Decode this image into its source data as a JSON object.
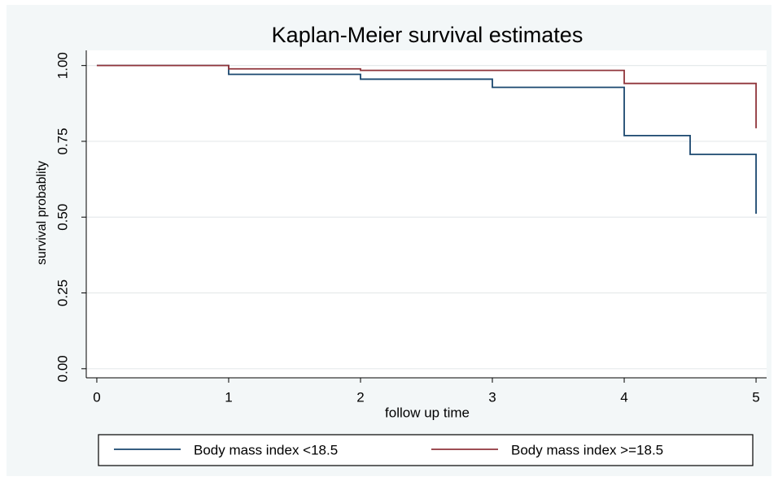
{
  "chart_data": {
    "type": "line",
    "step": "post",
    "title": "Kaplan-Meier survival estimates",
    "xlabel": "follow up time",
    "ylabel": "survival probablity",
    "x": [
      0,
      1,
      2,
      3,
      4,
      4.5,
      5
    ],
    "series": [
      {
        "name": "Body mass index <18.5",
        "color": "#1a476f",
        "values": [
          1,
          0.971,
          0.955,
          0.928,
          0.769,
          0.707,
          0.511
        ]
      },
      {
        "name": "Body mass index >=18.5",
        "color": "#90353b",
        "values": [
          1,
          0.989,
          0.984,
          0.984,
          0.941,
          0.941,
          0.793
        ]
      }
    ],
    "xlim": [
      -0.08,
      5.08
    ],
    "xticks": [
      0,
      1,
      2,
      3,
      4,
      5
    ],
    "ylim": [
      -0.03,
      1.05
    ],
    "yticks": [
      {
        "value": 0,
        "label": "0.00"
      },
      {
        "value": 0.25,
        "label": "0.25"
      },
      {
        "value": 0.5,
        "label": "0.50"
      },
      {
        "value": 0.75,
        "label": "0.75"
      },
      {
        "value": 1,
        "label": "1.00"
      }
    ],
    "grid": true,
    "legend": "bottom"
  }
}
